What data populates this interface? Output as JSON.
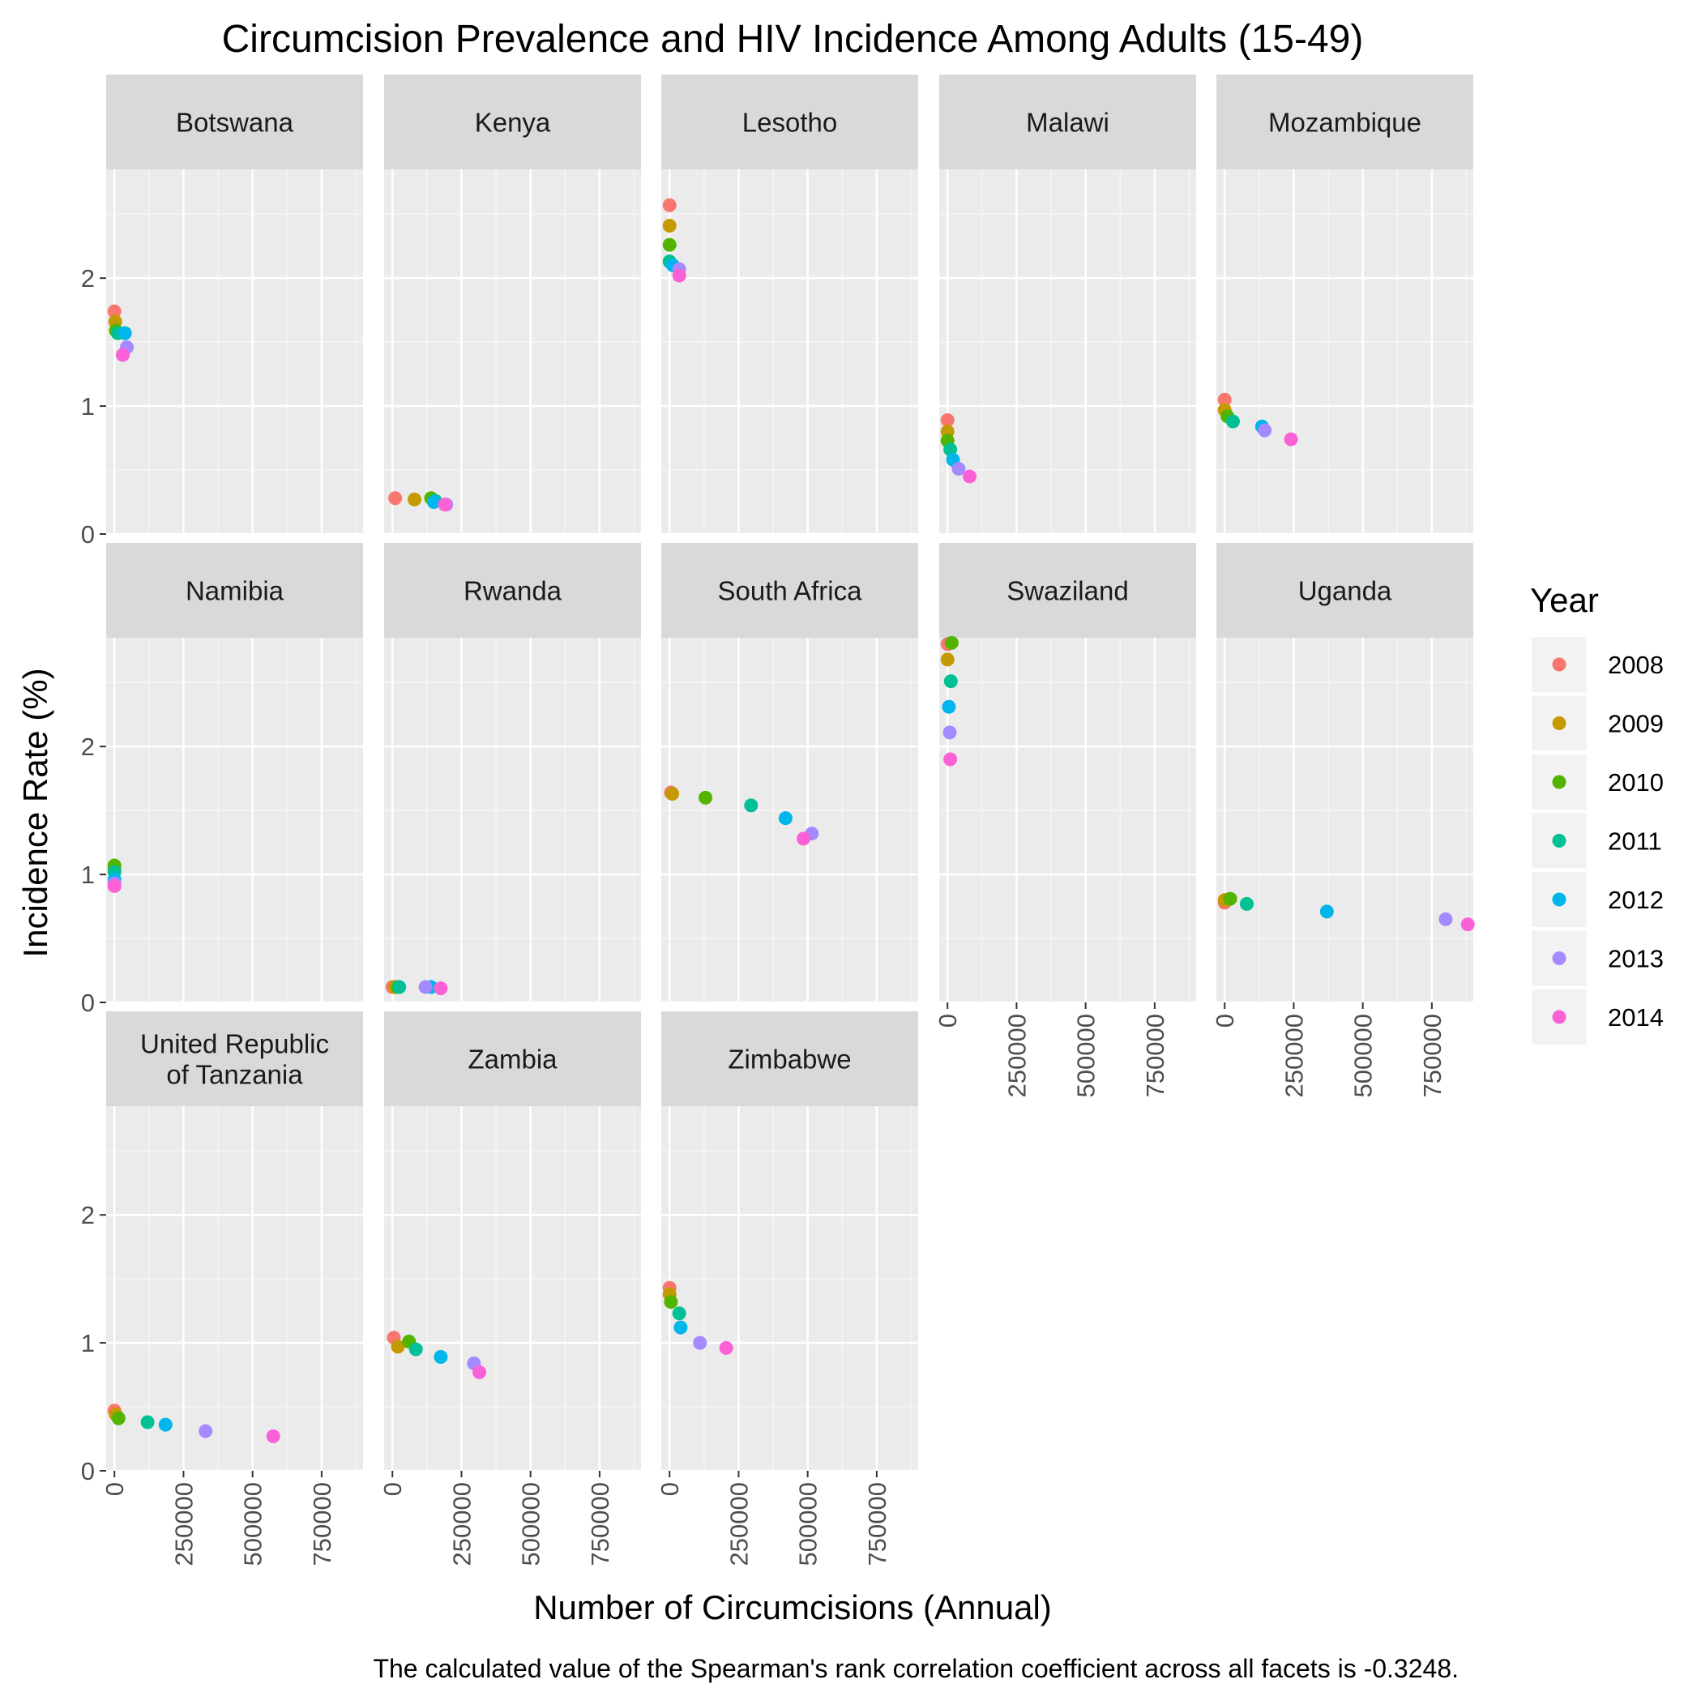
{
  "chart_data": {
    "type": "scatter",
    "title": "Circumcision Prevalence and HIV Incidence Among Adults (15-49)",
    "xlabel": "Number of Circumcisions (Annual)",
    "ylabel": "Incidence Rate (%)",
    "caption": "The calculated value of the Spearman's rank correlation coefficient across all facets is -0.3248.",
    "xlim": [
      -30000,
      900000
    ],
    "ylim": [
      0,
      2.85
    ],
    "x_ticks": [
      0,
      250000,
      500000,
      750000
    ],
    "x_tick_labels": [
      "0",
      "250000",
      "500000",
      "750000"
    ],
    "y_ticks": [
      0,
      1,
      2
    ],
    "y_tick_labels": [
      "0",
      "1",
      "2"
    ],
    "grid": true,
    "legend": {
      "title": "Year",
      "position": "right",
      "entries": [
        {
          "label": "2008",
          "color": "#F8766D"
        },
        {
          "label": "2009",
          "color": "#C49A00"
        },
        {
          "label": "2010",
          "color": "#53B400"
        },
        {
          "label": "2011",
          "color": "#00C094"
        },
        {
          "label": "2012",
          "color": "#00B6EB"
        },
        {
          "label": "2013",
          "color": "#A58AFF"
        },
        {
          "label": "2014",
          "color": "#FB61D7"
        }
      ]
    },
    "facets": [
      {
        "name": "Botswana",
        "points": [
          {
            "year": "2008",
            "x": 0,
            "y": 1.74
          },
          {
            "year": "2009",
            "x": 3000,
            "y": 1.66
          },
          {
            "year": "2010",
            "x": 5000,
            "y": 1.59
          },
          {
            "year": "2011",
            "x": 12000,
            "y": 1.57
          },
          {
            "year": "2012",
            "x": 38000,
            "y": 1.57
          },
          {
            "year": "2013",
            "x": 45000,
            "y": 1.46
          },
          {
            "year": "2014",
            "x": 30000,
            "y": 1.4
          }
        ]
      },
      {
        "name": "Kenya",
        "points": [
          {
            "year": "2008",
            "x": 10000,
            "y": 0.28
          },
          {
            "year": "2009",
            "x": 80000,
            "y": 0.27
          },
          {
            "year": "2010",
            "x": 140000,
            "y": 0.28
          },
          {
            "year": "2011",
            "x": 155000,
            "y": 0.26
          },
          {
            "year": "2012",
            "x": 150000,
            "y": 0.25
          },
          {
            "year": "2013",
            "x": 195000,
            "y": 0.23
          },
          {
            "year": "2014",
            "x": 190000,
            "y": 0.23
          }
        ]
      },
      {
        "name": "Lesotho",
        "points": [
          {
            "year": "2008",
            "x": 0,
            "y": 2.57
          },
          {
            "year": "2009",
            "x": 0,
            "y": 2.41
          },
          {
            "year": "2010",
            "x": 0,
            "y": 2.26
          },
          {
            "year": "2011",
            "x": 0,
            "y": 2.13
          },
          {
            "year": "2012",
            "x": 12000,
            "y": 2.1
          },
          {
            "year": "2013",
            "x": 35000,
            "y": 2.07
          },
          {
            "year": "2014",
            "x": 35000,
            "y": 2.02
          }
        ]
      },
      {
        "name": "Malawi",
        "points": [
          {
            "year": "2008",
            "x": 0,
            "y": 0.89
          },
          {
            "year": "2009",
            "x": 0,
            "y": 0.8
          },
          {
            "year": "2010",
            "x": 0,
            "y": 0.73
          },
          {
            "year": "2011",
            "x": 10000,
            "y": 0.66
          },
          {
            "year": "2012",
            "x": 20000,
            "y": 0.58
          },
          {
            "year": "2013",
            "x": 40000,
            "y": 0.51
          },
          {
            "year": "2014",
            "x": 80000,
            "y": 0.45
          }
        ]
      },
      {
        "name": "Mozambique",
        "points": [
          {
            "year": "2008",
            "x": 0,
            "y": 1.05
          },
          {
            "year": "2009",
            "x": 0,
            "y": 0.97
          },
          {
            "year": "2010",
            "x": 10000,
            "y": 0.92
          },
          {
            "year": "2011",
            "x": 30000,
            "y": 0.88
          },
          {
            "year": "2012",
            "x": 135000,
            "y": 0.84
          },
          {
            "year": "2013",
            "x": 145000,
            "y": 0.81
          },
          {
            "year": "2014",
            "x": 240000,
            "y": 0.74
          }
        ]
      },
      {
        "name": "Namibia",
        "points": [
          {
            "year": "2008",
            "x": 0,
            "y": 0.91
          },
          {
            "year": "2009",
            "x": 0,
            "y": 1.04
          },
          {
            "year": "2010",
            "x": 0,
            "y": 1.07
          },
          {
            "year": "2011",
            "x": 0,
            "y": 1.02
          },
          {
            "year": "2012",
            "x": 0,
            "y": 0.96
          },
          {
            "year": "2013",
            "x": 0,
            "y": 0.93
          },
          {
            "year": "2014",
            "x": 0,
            "y": 0.91
          }
        ]
      },
      {
        "name": "Rwanda",
        "points": [
          {
            "year": "2008",
            "x": 0,
            "y": 0.12
          },
          {
            "year": "2009",
            "x": 10000,
            "y": 0.12
          },
          {
            "year": "2010",
            "x": 20000,
            "y": 0.12
          },
          {
            "year": "2011",
            "x": 25000,
            "y": 0.12
          },
          {
            "year": "2012",
            "x": 140000,
            "y": 0.12
          },
          {
            "year": "2013",
            "x": 120000,
            "y": 0.12
          },
          {
            "year": "2014",
            "x": 175000,
            "y": 0.11
          }
        ]
      },
      {
        "name": "South Africa",
        "points": [
          {
            "year": "2008",
            "x": 5000,
            "y": 1.64
          },
          {
            "year": "2009",
            "x": 10000,
            "y": 1.63
          },
          {
            "year": "2010",
            "x": 130000,
            "y": 1.6
          },
          {
            "year": "2011",
            "x": 295000,
            "y": 1.54
          },
          {
            "year": "2012",
            "x": 420000,
            "y": 1.44
          },
          {
            "year": "2013",
            "x": 515000,
            "y": 1.32
          },
          {
            "year": "2014",
            "x": 485000,
            "y": 1.28
          }
        ]
      },
      {
        "name": "Swaziland",
        "points": [
          {
            "year": "2008",
            "x": 0,
            "y": 2.8
          },
          {
            "year": "2009",
            "x": 0,
            "y": 2.68
          },
          {
            "year": "2010",
            "x": 15000,
            "y": 2.81
          },
          {
            "year": "2011",
            "x": 12000,
            "y": 2.51
          },
          {
            "year": "2012",
            "x": 5000,
            "y": 2.31
          },
          {
            "year": "2013",
            "x": 8000,
            "y": 2.11
          },
          {
            "year": "2014",
            "x": 10000,
            "y": 1.9
          }
        ]
      },
      {
        "name": "Uganda",
        "points": [
          {
            "year": "2008",
            "x": 0,
            "y": 0.78
          },
          {
            "year": "2009",
            "x": 0,
            "y": 0.8
          },
          {
            "year": "2010",
            "x": 20000,
            "y": 0.81
          },
          {
            "year": "2011",
            "x": 80000,
            "y": 0.77
          },
          {
            "year": "2012",
            "x": 370000,
            "y": 0.71
          },
          {
            "year": "2013",
            "x": 800000,
            "y": 0.65
          },
          {
            "year": "2014",
            "x": 880000,
            "y": 0.61
          }
        ]
      },
      {
        "name": "United Republic of Tanzania",
        "name_lines": [
          "United Republic",
          "of Tanzania"
        ],
        "points": [
          {
            "year": "2008",
            "x": 0,
            "y": 0.47
          },
          {
            "year": "2009",
            "x": 5000,
            "y": 0.44
          },
          {
            "year": "2010",
            "x": 15000,
            "y": 0.41
          },
          {
            "year": "2011",
            "x": 120000,
            "y": 0.38
          },
          {
            "year": "2012",
            "x": 185000,
            "y": 0.36
          },
          {
            "year": "2013",
            "x": 330000,
            "y": 0.31
          },
          {
            "year": "2014",
            "x": 575000,
            "y": 0.27
          }
        ]
      },
      {
        "name": "Zambia",
        "points": [
          {
            "year": "2008",
            "x": 5000,
            "y": 1.04
          },
          {
            "year": "2009",
            "x": 20000,
            "y": 0.97
          },
          {
            "year": "2010",
            "x": 60000,
            "y": 1.01
          },
          {
            "year": "2011",
            "x": 85000,
            "y": 0.95
          },
          {
            "year": "2012",
            "x": 175000,
            "y": 0.89
          },
          {
            "year": "2013",
            "x": 295000,
            "y": 0.84
          },
          {
            "year": "2014",
            "x": 315000,
            "y": 0.77
          }
        ]
      },
      {
        "name": "Zimbabwe",
        "points": [
          {
            "year": "2008",
            "x": 0,
            "y": 1.43
          },
          {
            "year": "2009",
            "x": 0,
            "y": 1.38
          },
          {
            "year": "2010",
            "x": 5000,
            "y": 1.32
          },
          {
            "year": "2011",
            "x": 35000,
            "y": 1.23
          },
          {
            "year": "2012",
            "x": 40000,
            "y": 1.12
          },
          {
            "year": "2013",
            "x": 110000,
            "y": 1.0
          },
          {
            "year": "2014",
            "x": 205000,
            "y": 0.96
          }
        ]
      }
    ]
  }
}
